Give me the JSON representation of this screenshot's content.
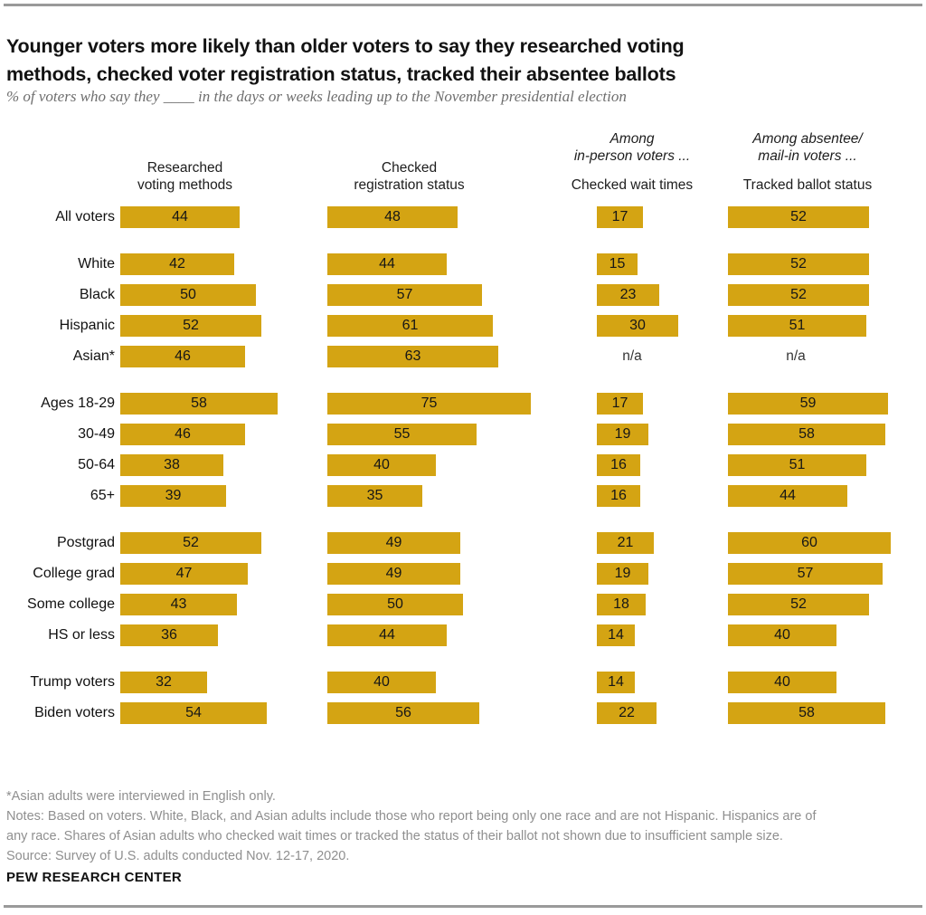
{
  "title_lines": [
    "Younger voters more likely than older voters to say they researched voting",
    "methods, checked voter registration status, tracked their absentee ballots"
  ],
  "subtitle": "% of voters who say they ____ in the days or weeks leading up to the November presidential election",
  "chart_data": {
    "type": "bar",
    "unit": "%",
    "orientation": "horizontal",
    "bar_color": "#D4A413",
    "value_range": [
      0,
      100
    ],
    "na_text": "n/a",
    "columns": [
      {
        "context_lines": [],
        "label_lines": [
          "Researched",
          "voting methods"
        ],
        "label": "Researched voting methods"
      },
      {
        "context_lines": [],
        "label_lines": [
          "Checked",
          "registration status"
        ],
        "label": "Checked registration status"
      },
      {
        "context_lines": [
          "Among",
          "in-person voters ..."
        ],
        "label_lines": [
          "Checked wait times"
        ],
        "label": "Checked wait times"
      },
      {
        "context_lines": [
          "Among absentee/",
          "mail-in voters ..."
        ],
        "label_lines": [
          "Tracked ballot status"
        ],
        "label": "Tracked ballot status"
      }
    ],
    "groups": [
      {
        "rows": [
          {
            "label": "All voters",
            "values": [
              44,
              48,
              17,
              52
            ]
          }
        ]
      },
      {
        "rows": [
          {
            "label": "White",
            "values": [
              42,
              44,
              15,
              52
            ]
          },
          {
            "label": "Black",
            "values": [
              50,
              57,
              23,
              52
            ]
          },
          {
            "label": "Hispanic",
            "values": [
              52,
              61,
              30,
              51
            ]
          },
          {
            "label": "Asian*",
            "values": [
              46,
              63,
              null,
              null
            ]
          }
        ]
      },
      {
        "rows": [
          {
            "label": "Ages 18-29",
            "values": [
              58,
              75,
              17,
              59
            ]
          },
          {
            "label": "30-49",
            "values": [
              46,
              55,
              19,
              58
            ]
          },
          {
            "label": "50-64",
            "values": [
              38,
              40,
              16,
              51
            ]
          },
          {
            "label": "65+",
            "values": [
              39,
              35,
              16,
              44
            ]
          }
        ]
      },
      {
        "rows": [
          {
            "label": "Postgrad",
            "values": [
              52,
              49,
              21,
              60
            ]
          },
          {
            "label": "College grad",
            "values": [
              47,
              49,
              19,
              57
            ]
          },
          {
            "label": "Some college",
            "values": [
              43,
              50,
              18,
              52
            ]
          },
          {
            "label": "HS or less",
            "values": [
              36,
              44,
              14,
              40
            ]
          }
        ]
      },
      {
        "rows": [
          {
            "label": "Trump voters",
            "values": [
              32,
              40,
              14,
              40
            ]
          },
          {
            "label": "Biden voters",
            "values": [
              54,
              56,
              22,
              58
            ]
          }
        ]
      }
    ]
  },
  "footnotes": [
    "*Asian adults were interviewed in English only.",
    "Notes: Based on voters. White, Black, and Asian adults include those who report being only one race and are not Hispanic. Hispanics are of",
    "any race. Shares of Asian adults who checked wait times or tracked the status of their ballot not shown due to insufficient sample size.",
    "Source: Survey of U.S. adults conducted Nov. 12-17, 2020."
  ],
  "brand": "PEW RESEARCH CENTER",
  "colors": {
    "bar_gold": "#D4A413",
    "rule_gray": "#9A9A9A",
    "subtitle_gray": "#6E6E6E",
    "notes_gray": "#8F8F8F",
    "text_black": "#111111"
  }
}
